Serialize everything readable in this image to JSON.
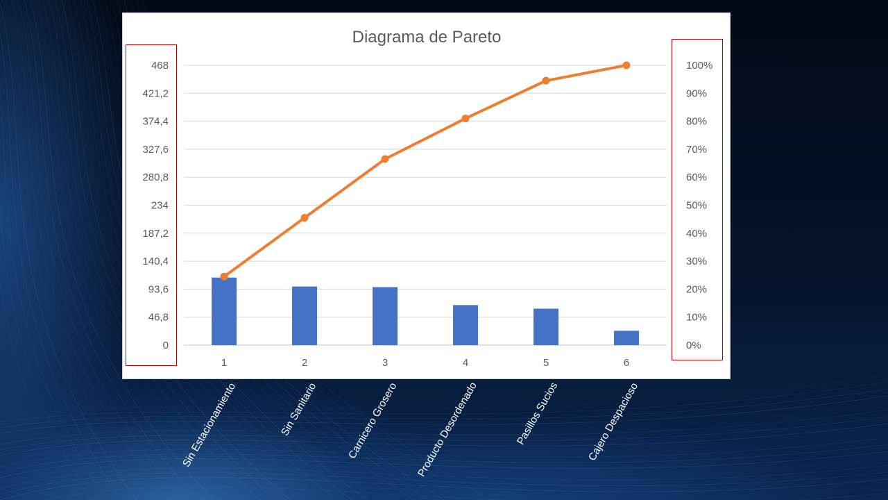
{
  "chart_data": {
    "type": "bar",
    "title": "Diagrama de Pareto",
    "categories": [
      "1",
      "2",
      "3",
      "4",
      "5",
      "6"
    ],
    "category_names": [
      "Sin Estacionamiento",
      "Sin Sanitario",
      "Carnicero Grosero",
      "Producto Desordenado",
      "Pasillos Sucios",
      "Cajero Despacioso"
    ],
    "series": [
      {
        "type": "bar",
        "axis": "left",
        "color": "#4472c4",
        "values": [
          113,
          98,
          97,
          67,
          61,
          24
        ]
      },
      {
        "type": "line",
        "axis": "right",
        "color": "#ed7d31",
        "values": [
          24.5,
          45.5,
          66.5,
          81,
          94.5,
          100
        ]
      }
    ],
    "y_left": {
      "ylim": [
        0,
        468
      ],
      "ticks": [
        "0",
        "46,8",
        "93,6",
        "140,4",
        "187,2",
        "234",
        "280,8",
        "327,6",
        "374,4",
        "421,2",
        "468"
      ]
    },
    "y_right": {
      "ylim": [
        0,
        100
      ],
      "ticks": [
        "0%",
        "10%",
        "20%",
        "30%",
        "40%",
        "50%",
        "60%",
        "70%",
        "80%",
        "90%",
        "100%"
      ]
    },
    "grid": true,
    "legend": "none"
  }
}
